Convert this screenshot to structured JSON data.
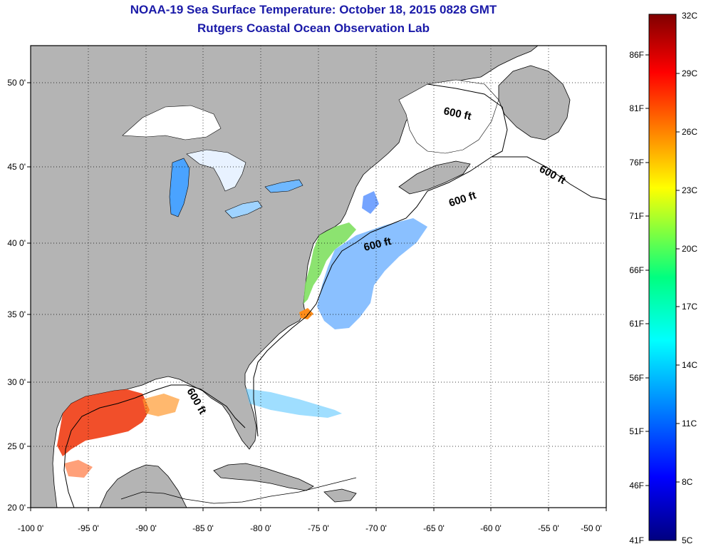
{
  "title": "NOAA-19 Sea Surface Temperature:  October 18, 2015 0828 GMT",
  "subtitle": "Rutgers Coastal Ocean Observation Lab",
  "map": {
    "lon_range": [
      -100,
      -50
    ],
    "lat_range": [
      20,
      52.5
    ],
    "lon_ticks": [
      "-100 0'",
      "-95 0'",
      "-90 0'",
      "-85 0'",
      "-80 0'",
      "-75 0'",
      "-70 0'",
      "-65 0'",
      "-60 0'",
      "-55 0'",
      "-50 0'"
    ],
    "lat_ticks": [
      "50 0'",
      "45 0'",
      "40 0'",
      "35 0'",
      "30 0'",
      "25 0'",
      "20 0'"
    ],
    "contour_label": "600 ft",
    "land_color": "#b4b4b4",
    "ocean_nodata_color": "#ffffff"
  },
  "colorbar": {
    "celsius_labels": [
      "32C",
      "29C",
      "26C",
      "23C",
      "20C",
      "17C",
      "14C",
      "11C",
      "8C",
      "5C"
    ],
    "fahrenheit_labels": [
      "86F",
      "81F",
      "76F",
      "71F",
      "66F",
      "61F",
      "56F",
      "51F",
      "46F",
      "41F"
    ],
    "colors_top_to_bottom": [
      "#800000",
      "#ff0000",
      "#ff8000",
      "#ffff00",
      "#80ff80",
      "#00ffff",
      "#0080ff",
      "#0000ff",
      "#000080"
    ]
  }
}
